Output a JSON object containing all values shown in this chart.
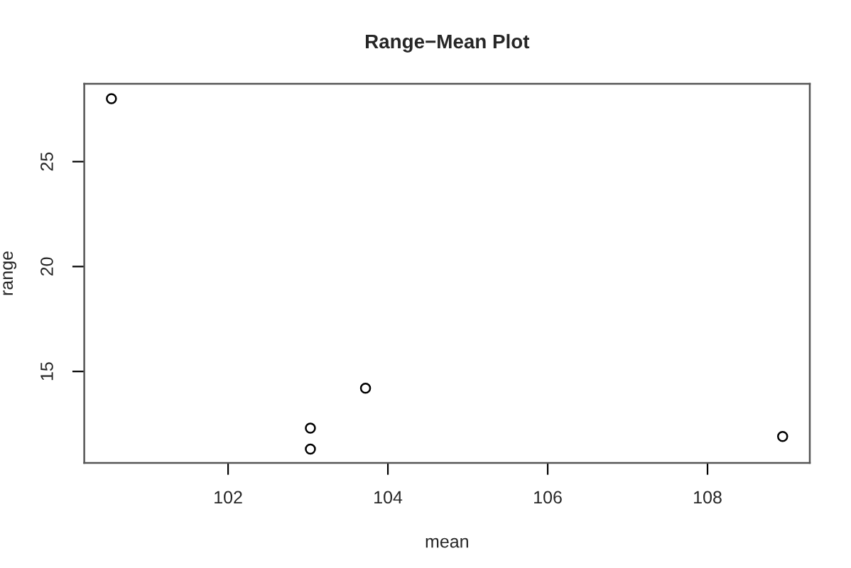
{
  "chart_data": {
    "type": "scatter",
    "title": "Range−Mean Plot",
    "xlabel": "mean",
    "ylabel": "range",
    "x": [
      100.54,
      103.03,
      103.03,
      103.72,
      108.94
    ],
    "series": [
      {
        "color": "#000000",
        "values": [
          28.0,
          12.3,
          11.3,
          14.2,
          11.9
        ]
      }
    ],
    "xlim": [
      100.2,
      109.28
    ],
    "ylim": [
      10.64,
      28.71
    ],
    "xticks": [
      102,
      104,
      106,
      108
    ],
    "yticks": [
      15,
      20,
      25
    ],
    "marker": "circle",
    "grid": false,
    "legend": false
  }
}
